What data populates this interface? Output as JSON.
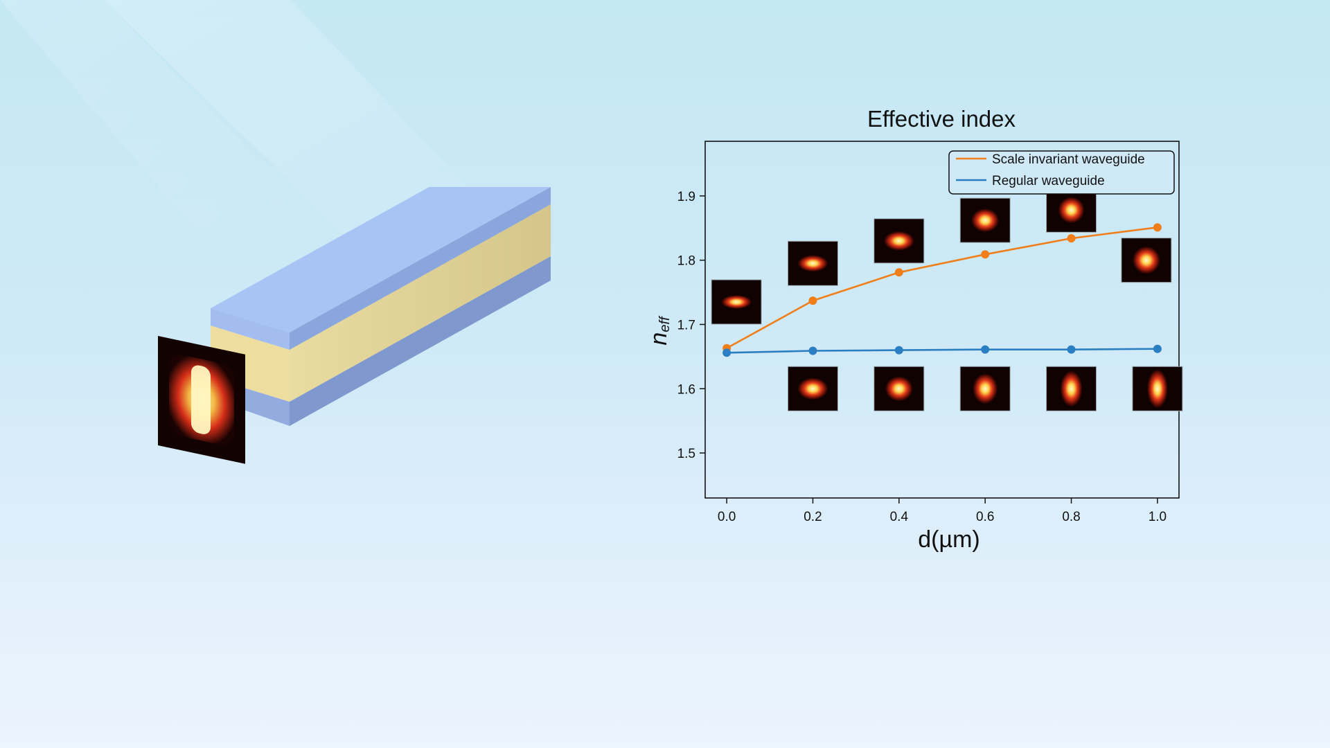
{
  "chart_data": {
    "type": "line",
    "title": "Effective index",
    "xlabel": "d(µm)",
    "ylabel": {
      "main": "n",
      "subscript": "eff"
    },
    "x": [
      0.0,
      0.2,
      0.4,
      0.6,
      0.8,
      1.0
    ],
    "xticks": [
      "0.0",
      "0.2",
      "0.4",
      "0.6",
      "0.8",
      "1.0"
    ],
    "yticks": [
      "1.5",
      "1.6",
      "1.7",
      "1.8",
      "1.9"
    ],
    "xlim": [
      -0.05,
      1.05
    ],
    "ylim": [
      1.43,
      1.985
    ],
    "grid": false,
    "legend_position": "top-right",
    "series": [
      {
        "name": "Scale invariant waveguide",
        "color": "#f07f1a",
        "values": [
          1.663,
          1.737,
          1.781,
          1.809,
          1.834,
          1.851
        ]
      },
      {
        "name": "Regular waveguide",
        "color": "#2a7fc2",
        "values": [
          1.656,
          1.659,
          1.66,
          1.661,
          1.661,
          1.662
        ]
      }
    ],
    "mode_insets": {
      "scale_invariant": "mode profile images shrink to a round bright spot as d increases",
      "regular": "mode profile images elongate vertically as d increases"
    }
  },
  "colors": {
    "background": "#cfe9f7",
    "cladding": "#a6c2ef",
    "core": "#e7d79b",
    "mode_hot": "#fffbd0",
    "mode_dark": "#0f0201"
  }
}
